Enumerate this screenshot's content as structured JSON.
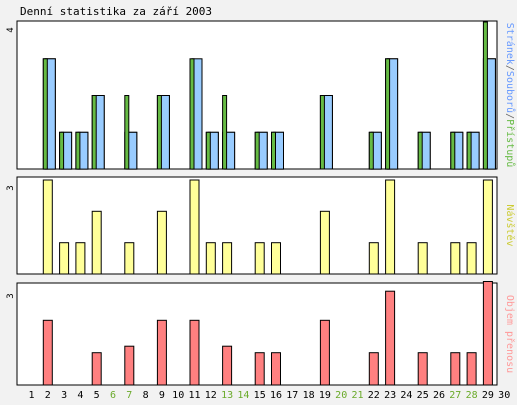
{
  "chart_data": {
    "type": "bar",
    "title": "Denní statistika za září 2003",
    "days": [
      "1",
      "2",
      "3",
      "4",
      "5",
      "6",
      "7",
      "8",
      "9",
      "10",
      "11",
      "12",
      "13",
      "14",
      "15",
      "16",
      "17",
      "18",
      "19",
      "20",
      "21",
      "22",
      "23",
      "24",
      "25",
      "26",
      "27",
      "28",
      "29",
      "30"
    ],
    "weekend_days": [
      "6",
      "7",
      "13",
      "14",
      "20",
      "21",
      "27",
      "28"
    ],
    "colors": {
      "weekday_label": "#000000",
      "weekend_label": "#6aaa2a",
      "stranek": "#99ccff",
      "souboru": "#99ccff",
      "pristupu": "#66bb44",
      "navstev": "#ffff99",
      "objem": "#ff8080",
      "frame": "#000000",
      "background": "#ffffff"
    },
    "panels": [
      {
        "id": "hits",
        "ytick": "4",
        "ymax": 4,
        "legend": [
          {
            "text": "Stránek",
            "color": "#6699ff"
          },
          {
            "text": "/",
            "color": "#666666"
          },
          {
            "text": "Souborů",
            "color": "#6699ff"
          },
          {
            "text": "/",
            "color": "#666666"
          },
          {
            "text": "Přístupů",
            "color": "#66bb44"
          }
        ],
        "series": [
          {
            "key": "stranek",
            "values": [
              0,
              3,
              1,
              1,
              2,
              0,
              1,
              0,
              2,
              0,
              2,
              1,
              1,
              0,
              1,
              1,
              0,
              0,
              2,
              0,
              0,
              1,
              3,
              0,
              1,
              0,
              1,
              1,
              3,
              0
            ]
          },
          {
            "key": "souboru",
            "values": [
              0,
              3,
              1,
              1,
              2,
              0,
              1,
              0,
              2,
              0,
              3,
              1,
              1,
              0,
              1,
              1,
              0,
              0,
              2,
              0,
              0,
              1,
              3,
              0,
              1,
              0,
              1,
              1,
              3,
              0
            ]
          },
          {
            "key": "pristupu",
            "values": [
              0,
              3,
              1,
              1,
              2,
              0,
              2,
              0,
              2,
              0,
              3,
              1,
              2,
              0,
              1,
              1,
              0,
              0,
              2,
              0,
              0,
              1,
              3,
              0,
              1,
              0,
              1,
              1,
              4,
              0
            ]
          }
        ]
      },
      {
        "id": "visits",
        "ytick": "3",
        "ymax": 3,
        "legend": [
          {
            "text": "Návštěv",
            "color": "#cccc33"
          }
        ],
        "series": [
          {
            "key": "navstev",
            "values": [
              0,
              3,
              1,
              1,
              2,
              0,
              1,
              0,
              2,
              0,
              3,
              1,
              1,
              0,
              1,
              1,
              0,
              0,
              2,
              0,
              0,
              1,
              3,
              0,
              1,
              0,
              1,
              1,
              3,
              0
            ]
          }
        ]
      },
      {
        "id": "volume",
        "ytick": "3",
        "ymax": 3,
        "legend": [
          {
            "text": "Objem přenosu",
            "color": "#ff9999"
          }
        ],
        "series": [
          {
            "key": "objem",
            "values": [
              0,
              2.0,
              0,
              0,
              1.0,
              0,
              1.2,
              0,
              2.0,
              0,
              2.0,
              0,
              1.2,
              0,
              1.0,
              1.0,
              0,
              0,
              2.0,
              0,
              0,
              1.0,
              2.9,
              0,
              1.0,
              0,
              1.0,
              1.0,
              3.2,
              0
            ]
          }
        ]
      }
    ]
  }
}
